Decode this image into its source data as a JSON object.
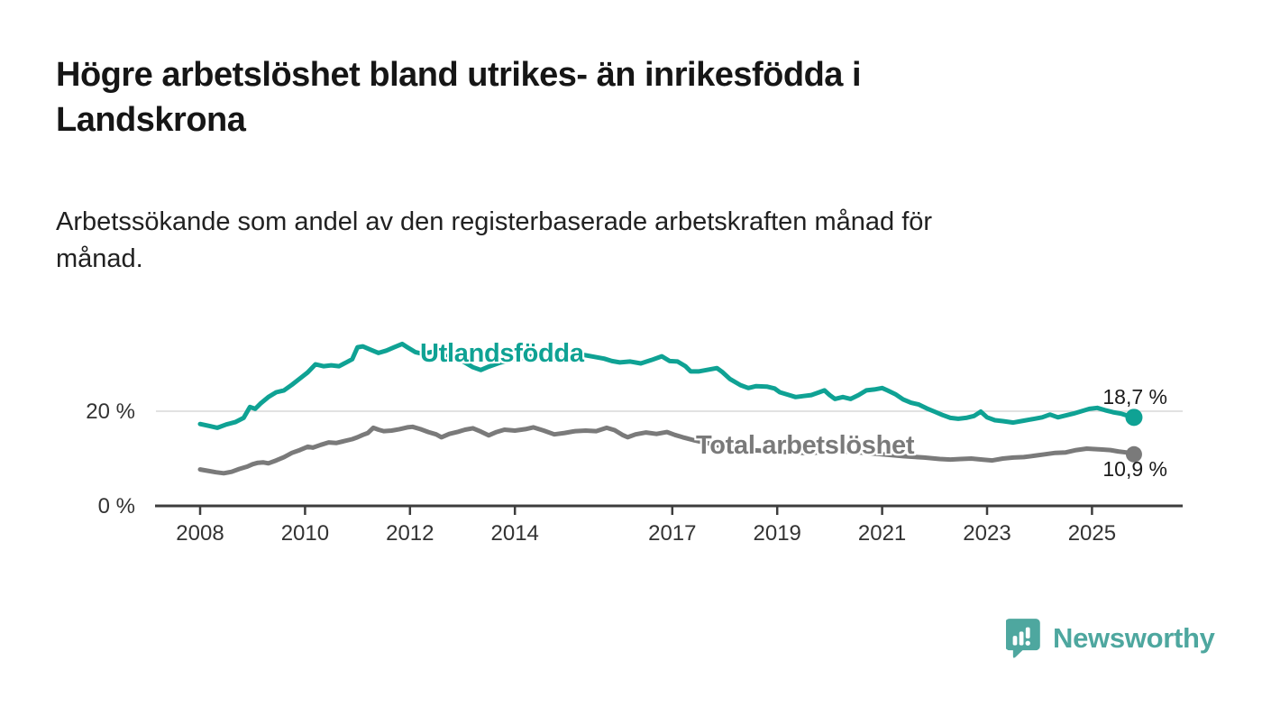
{
  "header": {
    "title": "Högre arbetslöshet bland utrikes- än inrikesfödda i\nLandskrona",
    "subtitle": "Arbetssökande som andel av den registerbaserade arbetskraften månad för\nmånad."
  },
  "footer": {
    "logo_text": "Newsworthy"
  },
  "colors": {
    "accent_teal": "#0FA294",
    "series_gray": "#7a7a7a",
    "axis": "#3d3d3d",
    "grid": "#d9d9d9",
    "tick_text": "#333333",
    "logo_teal": "#4EA79F"
  },
  "chart_data": {
    "type": "line",
    "title": "Högre arbetslöshet bland utrikes- än inrikesfödda i Landskrona",
    "subtitle": "Arbetssökande som andel av den registerbaserade arbetskraften månad för månad.",
    "xlabel": "",
    "ylabel": "",
    "grid": "horizontal-20-only",
    "x_axis": {
      "min": 2008,
      "max": 2025.9,
      "ticks": [
        2008,
        2010,
        2012,
        2014,
        2017,
        2019,
        2021,
        2023,
        2025
      ]
    },
    "y_axis": {
      "min": 0,
      "max": 36,
      "gridlines": [
        20
      ],
      "ticks": [
        {
          "value": 20,
          "label": "20 %"
        },
        {
          "value": 0,
          "label": "0 %"
        }
      ]
    },
    "series": [
      {
        "name": "Utlandsfödda",
        "color": "#0FA294",
        "end_label": "18,7 %",
        "end_value": 18.7,
        "points": [
          [
            2008.0,
            17.3
          ],
          [
            2008.17,
            16.9
          ],
          [
            2008.33,
            16.5
          ],
          [
            2008.5,
            17.2
          ],
          [
            2008.67,
            17.7
          ],
          [
            2008.83,
            18.6
          ],
          [
            2008.95,
            20.9
          ],
          [
            2009.05,
            20.5
          ],
          [
            2009.15,
            21.6
          ],
          [
            2009.3,
            23.0
          ],
          [
            2009.45,
            24.0
          ],
          [
            2009.6,
            24.4
          ],
          [
            2009.75,
            25.6
          ],
          [
            2009.9,
            26.9
          ],
          [
            2010.05,
            28.2
          ],
          [
            2010.2,
            29.9
          ],
          [
            2010.35,
            29.5
          ],
          [
            2010.5,
            29.7
          ],
          [
            2010.65,
            29.5
          ],
          [
            2010.8,
            30.4
          ],
          [
            2010.9,
            31.0
          ],
          [
            2011.0,
            33.5
          ],
          [
            2011.1,
            33.7
          ],
          [
            2011.25,
            33.0
          ],
          [
            2011.4,
            32.3
          ],
          [
            2011.55,
            32.8
          ],
          [
            2011.7,
            33.5
          ],
          [
            2011.85,
            34.2
          ],
          [
            2011.95,
            33.5
          ],
          [
            2012.1,
            32.5
          ],
          [
            2012.25,
            32.1
          ],
          [
            2012.4,
            32.5
          ],
          [
            2012.6,
            31.8
          ],
          [
            2012.8,
            31.4
          ],
          [
            2013.0,
            30.6
          ],
          [
            2013.2,
            29.3
          ],
          [
            2013.35,
            28.7
          ],
          [
            2013.5,
            29.4
          ],
          [
            2013.7,
            30.2
          ],
          [
            2013.9,
            30.8
          ],
          [
            2014.1,
            31.2
          ],
          [
            2014.3,
            31.6
          ],
          [
            2014.5,
            31.2
          ],
          [
            2014.7,
            30.8
          ],
          [
            2014.9,
            31.2
          ],
          [
            2015.1,
            31.6
          ],
          [
            2015.3,
            31.9
          ],
          [
            2015.5,
            31.5
          ],
          [
            2015.7,
            31.1
          ],
          [
            2015.85,
            30.6
          ],
          [
            2016.0,
            30.3
          ],
          [
            2016.2,
            30.5
          ],
          [
            2016.4,
            30.1
          ],
          [
            2016.6,
            30.8
          ],
          [
            2016.8,
            31.6
          ],
          [
            2016.95,
            30.6
          ],
          [
            2017.1,
            30.5
          ],
          [
            2017.25,
            29.5
          ],
          [
            2017.35,
            28.4
          ],
          [
            2017.5,
            28.4
          ],
          [
            2017.7,
            28.8
          ],
          [
            2017.85,
            29.1
          ],
          [
            2017.95,
            28.3
          ],
          [
            2018.1,
            26.8
          ],
          [
            2018.3,
            25.5
          ],
          [
            2018.45,
            24.9
          ],
          [
            2018.6,
            25.3
          ],
          [
            2018.8,
            25.2
          ],
          [
            2018.95,
            24.8
          ],
          [
            2019.05,
            24.0
          ],
          [
            2019.2,
            23.5
          ],
          [
            2019.35,
            23.0
          ],
          [
            2019.5,
            23.2
          ],
          [
            2019.65,
            23.4
          ],
          [
            2019.8,
            24.0
          ],
          [
            2019.9,
            24.4
          ],
          [
            2020.0,
            23.4
          ],
          [
            2020.1,
            22.6
          ],
          [
            2020.25,
            23.0
          ],
          [
            2020.4,
            22.6
          ],
          [
            2020.55,
            23.4
          ],
          [
            2020.7,
            24.4
          ],
          [
            2020.85,
            24.6
          ],
          [
            2021.0,
            24.9
          ],
          [
            2021.1,
            24.4
          ],
          [
            2021.25,
            23.6
          ],
          [
            2021.4,
            22.5
          ],
          [
            2021.55,
            21.8
          ],
          [
            2021.7,
            21.4
          ],
          [
            2021.85,
            20.6
          ],
          [
            2022.0,
            19.9
          ],
          [
            2022.15,
            19.2
          ],
          [
            2022.3,
            18.6
          ],
          [
            2022.45,
            18.4
          ],
          [
            2022.6,
            18.6
          ],
          [
            2022.75,
            19.0
          ],
          [
            2022.88,
            19.9
          ],
          [
            2023.0,
            18.7
          ],
          [
            2023.15,
            18.1
          ],
          [
            2023.3,
            17.9
          ],
          [
            2023.5,
            17.6
          ],
          [
            2023.7,
            18.0
          ],
          [
            2023.9,
            18.4
          ],
          [
            2024.05,
            18.7
          ],
          [
            2024.2,
            19.3
          ],
          [
            2024.35,
            18.7
          ],
          [
            2024.5,
            19.1
          ],
          [
            2024.65,
            19.5
          ],
          [
            2024.8,
            20.0
          ],
          [
            2024.95,
            20.5
          ],
          [
            2025.1,
            20.7
          ],
          [
            2025.25,
            20.2
          ],
          [
            2025.4,
            19.8
          ],
          [
            2025.55,
            19.5
          ],
          [
            2025.7,
            19.0
          ],
          [
            2025.8,
            18.7
          ]
        ]
      },
      {
        "name": "Total arbetslöshet",
        "color": "#7a7a7a",
        "end_label": "10,9 %",
        "end_value": 10.9,
        "points": [
          [
            2008.0,
            7.7
          ],
          [
            2008.15,
            7.4
          ],
          [
            2008.3,
            7.1
          ],
          [
            2008.45,
            6.9
          ],
          [
            2008.6,
            7.2
          ],
          [
            2008.75,
            7.8
          ],
          [
            2008.9,
            8.3
          ],
          [
            2009.0,
            8.8
          ],
          [
            2009.1,
            9.1
          ],
          [
            2009.2,
            9.2
          ],
          [
            2009.3,
            9.0
          ],
          [
            2009.45,
            9.6
          ],
          [
            2009.6,
            10.3
          ],
          [
            2009.75,
            11.2
          ],
          [
            2009.9,
            11.8
          ],
          [
            2010.05,
            12.5
          ],
          [
            2010.15,
            12.3
          ],
          [
            2010.3,
            12.9
          ],
          [
            2010.45,
            13.4
          ],
          [
            2010.6,
            13.3
          ],
          [
            2010.75,
            13.7
          ],
          [
            2010.9,
            14.1
          ],
          [
            2011.0,
            14.5
          ],
          [
            2011.1,
            15.0
          ],
          [
            2011.2,
            15.4
          ],
          [
            2011.3,
            16.5
          ],
          [
            2011.4,
            16.1
          ],
          [
            2011.5,
            15.8
          ],
          [
            2011.65,
            15.9
          ],
          [
            2011.8,
            16.2
          ],
          [
            2011.95,
            16.6
          ],
          [
            2012.05,
            16.7
          ],
          [
            2012.2,
            16.2
          ],
          [
            2012.35,
            15.6
          ],
          [
            2012.5,
            15.1
          ],
          [
            2012.6,
            14.5
          ],
          [
            2012.75,
            15.2
          ],
          [
            2012.9,
            15.6
          ],
          [
            2013.05,
            16.1
          ],
          [
            2013.2,
            16.4
          ],
          [
            2013.35,
            15.7
          ],
          [
            2013.5,
            14.9
          ],
          [
            2013.65,
            15.6
          ],
          [
            2013.8,
            16.1
          ],
          [
            2014.0,
            15.9
          ],
          [
            2014.2,
            16.2
          ],
          [
            2014.35,
            16.6
          ],
          [
            2014.55,
            15.9
          ],
          [
            2014.75,
            15.1
          ],
          [
            2014.95,
            15.4
          ],
          [
            2015.15,
            15.8
          ],
          [
            2015.35,
            15.9
          ],
          [
            2015.55,
            15.8
          ],
          [
            2015.75,
            16.5
          ],
          [
            2015.9,
            16.0
          ],
          [
            2016.05,
            15.0
          ],
          [
            2016.15,
            14.5
          ],
          [
            2016.3,
            15.1
          ],
          [
            2016.5,
            15.5
          ],
          [
            2016.7,
            15.2
          ],
          [
            2016.9,
            15.6
          ],
          [
            2017.05,
            15.0
          ],
          [
            2017.2,
            14.5
          ],
          [
            2017.4,
            13.9
          ],
          [
            2017.6,
            13.4
          ],
          [
            2017.9,
            12.7
          ],
          [
            2018.2,
            12.2
          ],
          [
            2018.5,
            11.8
          ],
          [
            2018.8,
            11.6
          ],
          [
            2019.1,
            11.4
          ],
          [
            2019.5,
            11.2
          ],
          [
            2019.9,
            11.3
          ],
          [
            2020.3,
            11.5
          ],
          [
            2020.7,
            11.2
          ],
          [
            2021.0,
            10.9
          ],
          [
            2021.4,
            10.5
          ],
          [
            2021.8,
            10.2
          ],
          [
            2022.1,
            9.9
          ],
          [
            2022.3,
            9.8
          ],
          [
            2022.5,
            9.9
          ],
          [
            2022.7,
            10.0
          ],
          [
            2022.9,
            9.8
          ],
          [
            2023.1,
            9.6
          ],
          [
            2023.3,
            10.0
          ],
          [
            2023.5,
            10.2
          ],
          [
            2023.7,
            10.3
          ],
          [
            2023.9,
            10.6
          ],
          [
            2024.1,
            10.9
          ],
          [
            2024.3,
            11.2
          ],
          [
            2024.5,
            11.3
          ],
          [
            2024.7,
            11.8
          ],
          [
            2024.9,
            12.1
          ],
          [
            2025.05,
            12.0
          ],
          [
            2025.2,
            11.9
          ],
          [
            2025.35,
            11.8
          ],
          [
            2025.5,
            11.5
          ],
          [
            2025.65,
            11.3
          ],
          [
            2025.8,
            10.9
          ]
        ]
      }
    ]
  }
}
